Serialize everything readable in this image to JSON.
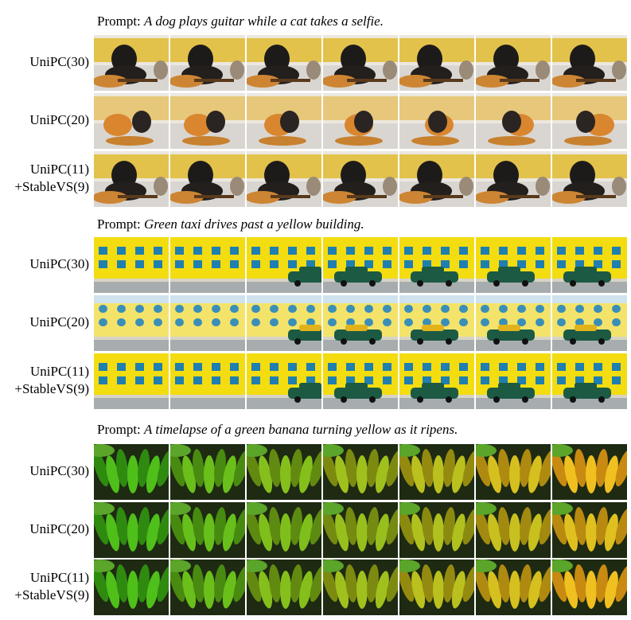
{
  "sections": [
    {
      "prompt_label": "Prompt:",
      "prompt": "A dog plays guitar while a cat takes a selfie.",
      "rows": [
        {
          "label": [
            "UniPC(30)"
          ]
        },
        {
          "label": [
            "UniPC(20)"
          ]
        },
        {
          "label": [
            "UniPC(11)",
            "+StableVS(9)"
          ]
        }
      ]
    },
    {
      "prompt_label": "Prompt:",
      "prompt": "Green taxi drives past a yellow building.",
      "rows": [
        {
          "label": [
            "UniPC(30)"
          ]
        },
        {
          "label": [
            "UniPC(20)"
          ]
        },
        {
          "label": [
            "UniPC(11)",
            "+StableVS(9)"
          ]
        }
      ]
    },
    {
      "prompt_label": "Prompt:",
      "prompt": "A timelapse of a green banana turning yellow as it ripens.",
      "rows": [
        {
          "label": [
            "UniPC(30)"
          ]
        },
        {
          "label": [
            "UniPC(20)"
          ]
        },
        {
          "label": [
            "UniPC(11)",
            "+StableVS(9)"
          ]
        }
      ]
    }
  ]
}
